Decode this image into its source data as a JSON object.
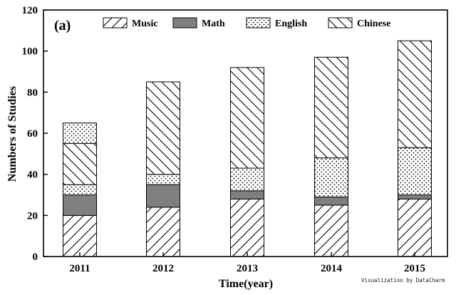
{
  "chart_data": {
    "type": "bar",
    "stacked": true,
    "panel_label": "(a)",
    "xlabel": "Time(year)",
    "ylabel": "Numbers of Studies",
    "categories": [
      "2011",
      "2012",
      "2013",
      "2014",
      "2015"
    ],
    "ylim": [
      0,
      120
    ],
    "yticks": [
      0,
      20,
      40,
      60,
      80,
      100,
      120
    ],
    "legend_position": "top",
    "grid": false,
    "series": [
      {
        "name": "Music",
        "pattern": "forward-diagonal-hatch",
        "values": [
          20,
          24,
          28,
          25,
          28
        ]
      },
      {
        "name": "Math",
        "pattern": "solid-gray",
        "color": "#7f7f7f",
        "values": [
          10,
          11,
          4,
          4,
          2
        ]
      },
      {
        "name": "English",
        "pattern": "dots",
        "values": [
          5,
          5,
          11,
          19,
          23
        ]
      },
      {
        "name": "Chinese",
        "pattern": "back-diagonal-hatch",
        "values": [
          20,
          45,
          49,
          49,
          52
        ]
      },
      {
        "name": "",
        "pattern": "dots",
        "values": [
          10,
          0,
          0,
          0,
          0
        ]
      }
    ]
  },
  "watermark": "Visualization by DataCharm"
}
